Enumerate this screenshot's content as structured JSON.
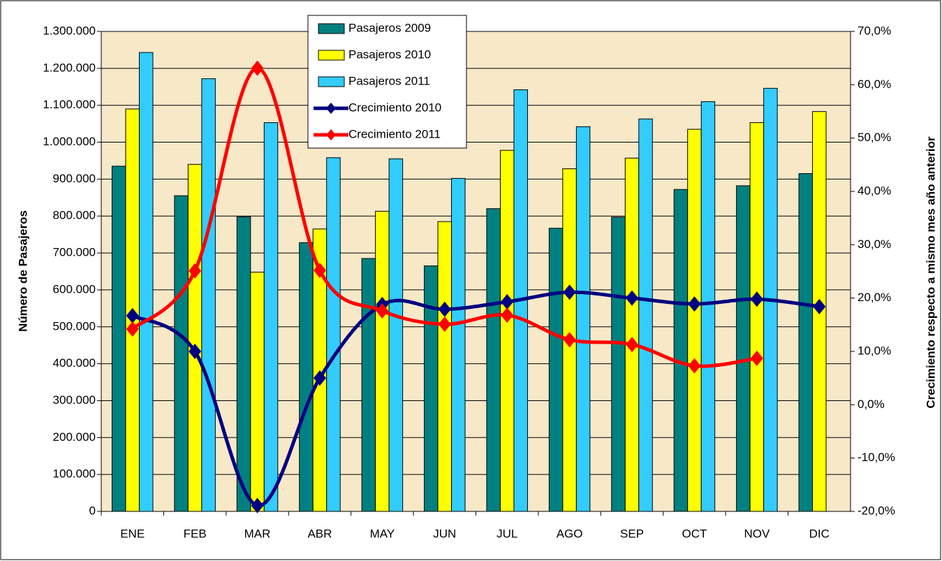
{
  "chart_data": {
    "type": "bar",
    "y_label": "Número de Pasajeros",
    "y2_label": "Crecimiento respecto a mismo mes año anterior",
    "categories": [
      "ENE",
      "FEB",
      "MAR",
      "ABR",
      "MAY",
      "JUN",
      "JUL",
      "AGO",
      "SEP",
      "OCT",
      "NOV",
      "DIC"
    ],
    "series": [
      {
        "name": "Pasajeros 2009",
        "type": "bar",
        "color": "#008080",
        "values": [
          935000,
          855000,
          798000,
          728000,
          685000,
          665000,
          820000,
          767000,
          797000,
          872000,
          882000,
          915000
        ]
      },
      {
        "name": "Pasajeros 2010",
        "type": "bar",
        "color": "#ffff00",
        "values": [
          1090000,
          940000,
          648000,
          765000,
          813000,
          785000,
          978000,
          928000,
          957000,
          1035000,
          1053000,
          1083000
        ]
      },
      {
        "name": "Pasajeros 2011",
        "type": "bar",
        "color": "#33ccff",
        "values": [
          1243000,
          1172000,
          1053000,
          958000,
          955000,
          902000,
          1142000,
          1042000,
          1063000,
          1110000,
          1146000,
          null
        ]
      },
      {
        "name": "Crecimiento 2010",
        "type": "line",
        "axis": "y2",
        "color": "#000080",
        "values": [
          16.7,
          10.0,
          -18.9,
          5.0,
          18.8,
          17.9,
          19.3,
          21.1,
          20.0,
          18.9,
          19.8,
          18.4
        ]
      },
      {
        "name": "Crecimiento 2011",
        "type": "line",
        "axis": "y2",
        "color": "#ff0000",
        "values": [
          14.2,
          25.1,
          63.1,
          25.2,
          17.6,
          15.1,
          16.8,
          12.2,
          11.3,
          7.3,
          8.7,
          null
        ]
      }
    ],
    "ylim": [
      0,
      1300000
    ],
    "yticks": [
      0,
      {
        "value": 100000,
        "label": "100.000"
      },
      {
        "value": 200000,
        "label": "200.000"
      },
      {
        "value": 300000,
        "label": "300.000"
      },
      {
        "value": 400000,
        "label": "400.000"
      },
      {
        "value": 500000,
        "label": "500.000"
      },
      {
        "value": 600000,
        "label": "600.000"
      },
      {
        "value": 700000,
        "label": "700.000"
      },
      {
        "value": 800000,
        "label": "800.000"
      },
      {
        "value": 900000,
        "label": "900.000"
      },
      {
        "value": 1000000,
        "label": "1.000.000"
      },
      {
        "value": 1100000,
        "label": "1.100.000"
      },
      {
        "value": 1200000,
        "label": "1.200.000"
      },
      {
        "value": 1300000,
        "label": "1.300.000"
      }
    ],
    "y2lim": [
      -20,
      70
    ],
    "y2ticks": [
      {
        "value": -20,
        "label": "-20,0%"
      },
      {
        "value": -10,
        "label": "-10,0%"
      },
      {
        "value": 0,
        "label": "0,0%"
      },
      {
        "value": 10,
        "label": "10,0%"
      },
      {
        "value": 20,
        "label": "20,0%"
      },
      {
        "value": 30,
        "label": "30,0%"
      },
      {
        "value": 40,
        "label": "40,0%"
      },
      {
        "value": 50,
        "label": "50,0%"
      },
      {
        "value": 60,
        "label": "60,0%"
      },
      {
        "value": 70,
        "label": "70,0%"
      }
    ],
    "grid": true
  }
}
